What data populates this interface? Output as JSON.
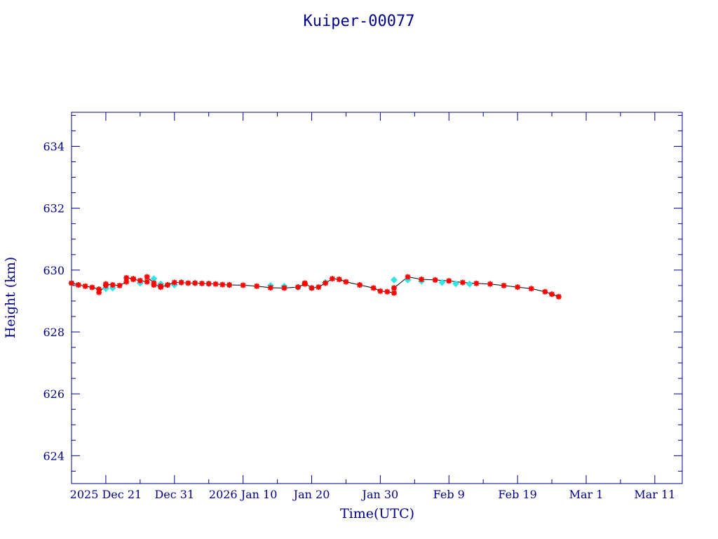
{
  "colors": {
    "axis": "#00008b",
    "background": "#ffffff",
    "line": "#000000",
    "marker_primary": "#ff0000",
    "marker_secondary": "#33e6e6"
  },
  "chart_data": {
    "type": "scatter",
    "title": "Kuiper-00077",
    "xlabel": "Time(UTC)",
    "ylabel": "Height (km)",
    "ylim": [
      623.1,
      635.1
    ],
    "xlim": [
      "2025-12-16",
      "2026-03-15"
    ],
    "yticks": [
      624,
      626,
      628,
      630,
      632,
      634
    ],
    "ytick_labels": [
      "624",
      "626",
      "628",
      "630",
      "632",
      "634"
    ],
    "xticks": [
      "2025-12-21",
      "2025-12-31",
      "2026-01-10",
      "2026-01-20",
      "2026-01-30",
      "2026-02-09",
      "2026-02-19",
      "2026-03-01",
      "2026-03-11"
    ],
    "xtick_labels": [
      "2025 Dec 21",
      "Dec 31",
      "2026 Jan 10",
      "Jan 20",
      "Jan 30",
      "Feb  9",
      "Feb 19",
      "Mar  1",
      "Mar 11"
    ],
    "grid": false,
    "legend": "none",
    "series": [
      {
        "marker": "star",
        "color": "#ff0000",
        "x": [
          "2025-12-16",
          "2025-12-17",
          "2025-12-18",
          "2025-12-19",
          "2025-12-20",
          "2025-12-20",
          "2025-12-21",
          "2025-12-21",
          "2025-12-22",
          "2025-12-23",
          "2025-12-24",
          "2025-12-24",
          "2025-12-25",
          "2025-12-25",
          "2025-12-26",
          "2025-12-27",
          "2025-12-27",
          "2025-12-28",
          "2025-12-28",
          "2025-12-29",
          "2025-12-29",
          "2025-12-30",
          "2025-12-31",
          "2026-01-01",
          "2026-01-02",
          "2026-01-03",
          "2026-01-04",
          "2026-01-05",
          "2026-01-06",
          "2026-01-07",
          "2026-01-08",
          "2026-01-10",
          "2026-01-12",
          "2026-01-14",
          "2026-01-16",
          "2026-01-18",
          "2026-01-19",
          "2026-01-19",
          "2026-01-20",
          "2026-01-21",
          "2026-01-22",
          "2026-01-23",
          "2026-01-24",
          "2026-01-25",
          "2026-01-27",
          "2026-01-29",
          "2026-01-30",
          "2026-01-31",
          "2026-02-01",
          "2026-02-01",
          "2026-02-03",
          "2026-02-05",
          "2026-02-07",
          "2026-02-09",
          "2026-02-11",
          "2026-02-13",
          "2026-02-15",
          "2026-02-17",
          "2026-02-19",
          "2026-02-21",
          "2026-02-23",
          "2026-02-24",
          "2026-02-25"
        ],
        "y": [
          629.58,
          629.52,
          629.48,
          629.44,
          629.38,
          629.28,
          629.5,
          629.55,
          629.52,
          629.5,
          629.62,
          629.75,
          629.72,
          629.7,
          629.66,
          629.62,
          629.78,
          629.58,
          629.52,
          629.48,
          629.45,
          629.52,
          629.6,
          629.6,
          629.58,
          629.58,
          629.57,
          629.56,
          629.55,
          629.53,
          629.52,
          629.51,
          629.48,
          629.43,
          629.42,
          629.45,
          629.55,
          629.58,
          629.42,
          629.45,
          629.58,
          629.72,
          629.7,
          629.62,
          629.52,
          629.42,
          629.32,
          629.3,
          629.26,
          629.42,
          629.78,
          629.7,
          629.68,
          629.65,
          629.6,
          629.57,
          629.55,
          629.5,
          629.45,
          629.4,
          629.3,
          629.22,
          629.14
        ]
      },
      {
        "marker": "diamond",
        "color": "#33e6e6",
        "x": [
          "2025-12-16",
          "2025-12-21",
          "2025-12-22",
          "2025-12-26",
          "2025-12-28",
          "2025-12-29",
          "2025-12-31",
          "2026-01-01",
          "2026-01-03",
          "2026-01-05",
          "2026-01-08",
          "2026-01-14",
          "2026-01-16",
          "2026-01-18",
          "2026-01-20",
          "2026-01-22",
          "2026-02-01",
          "2026-02-03",
          "2026-02-05",
          "2026-02-08",
          "2026-02-10",
          "2026-02-12"
        ],
        "y": [
          629.58,
          629.4,
          629.42,
          629.58,
          629.72,
          629.55,
          629.52,
          629.6,
          629.58,
          629.56,
          629.52,
          629.5,
          629.48,
          629.44,
          629.42,
          629.6,
          629.68,
          629.68,
          629.64,
          629.6,
          629.56,
          629.55
        ]
      }
    ]
  }
}
